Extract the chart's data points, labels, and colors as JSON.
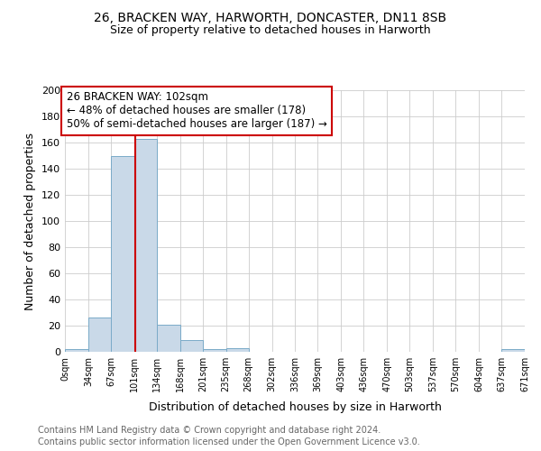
{
  "title_line1": "26, BRACKEN WAY, HARWORTH, DONCASTER, DN11 8SB",
  "title_line2": "Size of property relative to detached houses in Harworth",
  "xlabel": "Distribution of detached houses by size in Harworth",
  "ylabel": "Number of detached properties",
  "bar_edges": [
    0,
    34,
    67,
    101,
    134,
    168,
    201,
    235,
    268,
    302,
    336,
    369,
    403,
    436,
    470,
    503,
    537,
    570,
    604,
    637,
    671
  ],
  "bar_heights": [
    2,
    26,
    150,
    163,
    21,
    9,
    2,
    3,
    0,
    0,
    0,
    0,
    0,
    0,
    0,
    0,
    0,
    0,
    0,
    2
  ],
  "bar_color": "#c9d9e8",
  "bar_edge_color": "#7aaac8",
  "red_line_x": 102,
  "annotation_text_line1": "26 BRACKEN WAY: 102sqm",
  "annotation_text_line2": "← 48% of detached houses are smaller (178)",
  "annotation_text_line3": "50% of semi-detached houses are larger (187) →",
  "annotation_box_color": "#ffffff",
  "annotation_border_color": "#cc0000",
  "ylim": [
    0,
    200
  ],
  "yticks": [
    0,
    20,
    40,
    60,
    80,
    100,
    120,
    140,
    160,
    180,
    200
  ],
  "xtick_labels": [
    "0sqm",
    "34sqm",
    "67sqm",
    "101sqm",
    "134sqm",
    "168sqm",
    "201sqm",
    "235sqm",
    "268sqm",
    "302sqm",
    "336sqm",
    "369sqm",
    "403sqm",
    "436sqm",
    "470sqm",
    "503sqm",
    "537sqm",
    "570sqm",
    "604sqm",
    "637sqm",
    "671sqm"
  ],
  "footer_line1": "Contains HM Land Registry data © Crown copyright and database right 2024.",
  "footer_line2": "Contains public sector information licensed under the Open Government Licence v3.0.",
  "background_color": "#ffffff",
  "plot_background_color": "#ffffff",
  "grid_color": "#cccccc",
  "title_fontsize": 10,
  "subtitle_fontsize": 9,
  "footer_fontsize": 7,
  "annotation_fontsize": 8.5
}
